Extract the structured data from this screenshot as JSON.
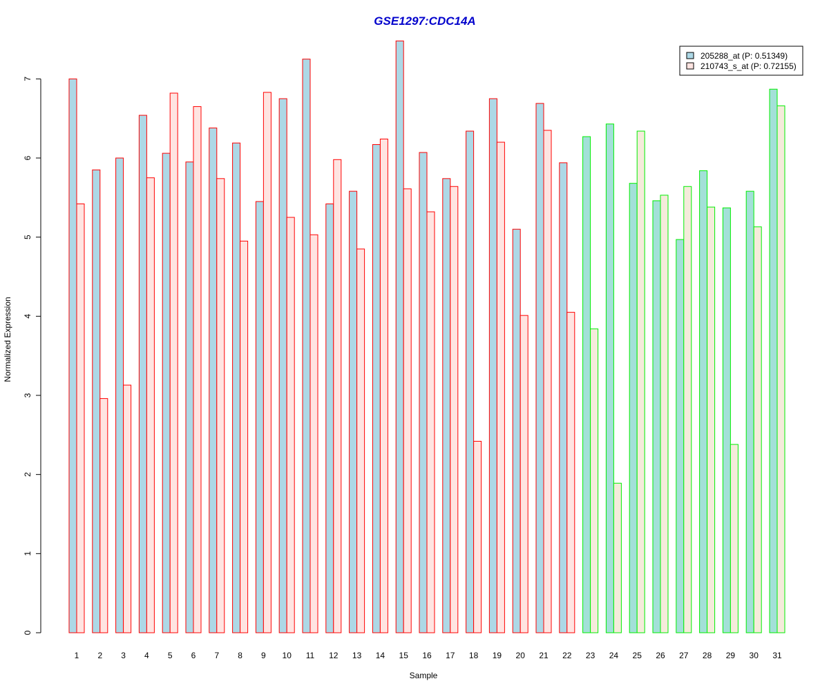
{
  "chart_data": {
    "type": "bar",
    "title": "GSE1297:CDC14A",
    "xlabel": "Sample",
    "ylabel": "Normalized Expression",
    "ylim": [
      0,
      7.5
    ],
    "yticks": [
      "0",
      "1",
      "2",
      "3",
      "4",
      "5",
      "6",
      "7"
    ],
    "categories": [
      "1",
      "2",
      "3",
      "4",
      "5",
      "6",
      "7",
      "8",
      "9",
      "10",
      "11",
      "12",
      "13",
      "14",
      "15",
      "16",
      "17",
      "18",
      "19",
      "20",
      "21",
      "22",
      "23",
      "24",
      "25",
      "26",
      "27",
      "28",
      "29",
      "30",
      "31"
    ],
    "series": [
      {
        "name": "205288_at (P: 0.51349)",
        "values": [
          7.0,
          5.85,
          6.0,
          6.54,
          6.06,
          5.95,
          6.38,
          6.19,
          5.45,
          6.75,
          7.25,
          5.42,
          5.58,
          6.17,
          7.48,
          6.07,
          5.74,
          6.34,
          6.75,
          5.1,
          6.69,
          5.94,
          6.27,
          6.43,
          5.68,
          5.46,
          4.97,
          5.84,
          5.37,
          5.58,
          6.87
        ]
      },
      {
        "name": "210743_s_at (P: 0.72155)",
        "values": [
          5.42,
          2.96,
          3.13,
          5.75,
          6.82,
          6.65,
          5.74,
          4.95,
          6.83,
          5.25,
          5.03,
          5.98,
          4.85,
          6.24,
          5.61,
          5.32,
          5.64,
          2.42,
          6.2,
          4.01,
          6.35,
          4.05,
          3.84,
          1.89,
          6.34,
          5.53,
          5.64,
          5.38,
          2.38,
          5.13,
          6.66
        ]
      }
    ],
    "groups": [
      {
        "samples": "1-22",
        "border_color": "#ff0000",
        "fills": [
          "#add8e6",
          "#ffe4e1"
        ]
      },
      {
        "samples": "23-31",
        "border_color": "#00ee00",
        "fills": [
          "#a3e0d8",
          "#f5ebdb"
        ]
      }
    ],
    "legend": {
      "position": "top-right",
      "entries": [
        {
          "label": "205288_at (P: 0.51349)",
          "fill": "#add8e6"
        },
        {
          "label": "210743_s_at (P: 0.72155)",
          "fill": "#ffe4e1"
        }
      ]
    },
    "grid": false
  }
}
